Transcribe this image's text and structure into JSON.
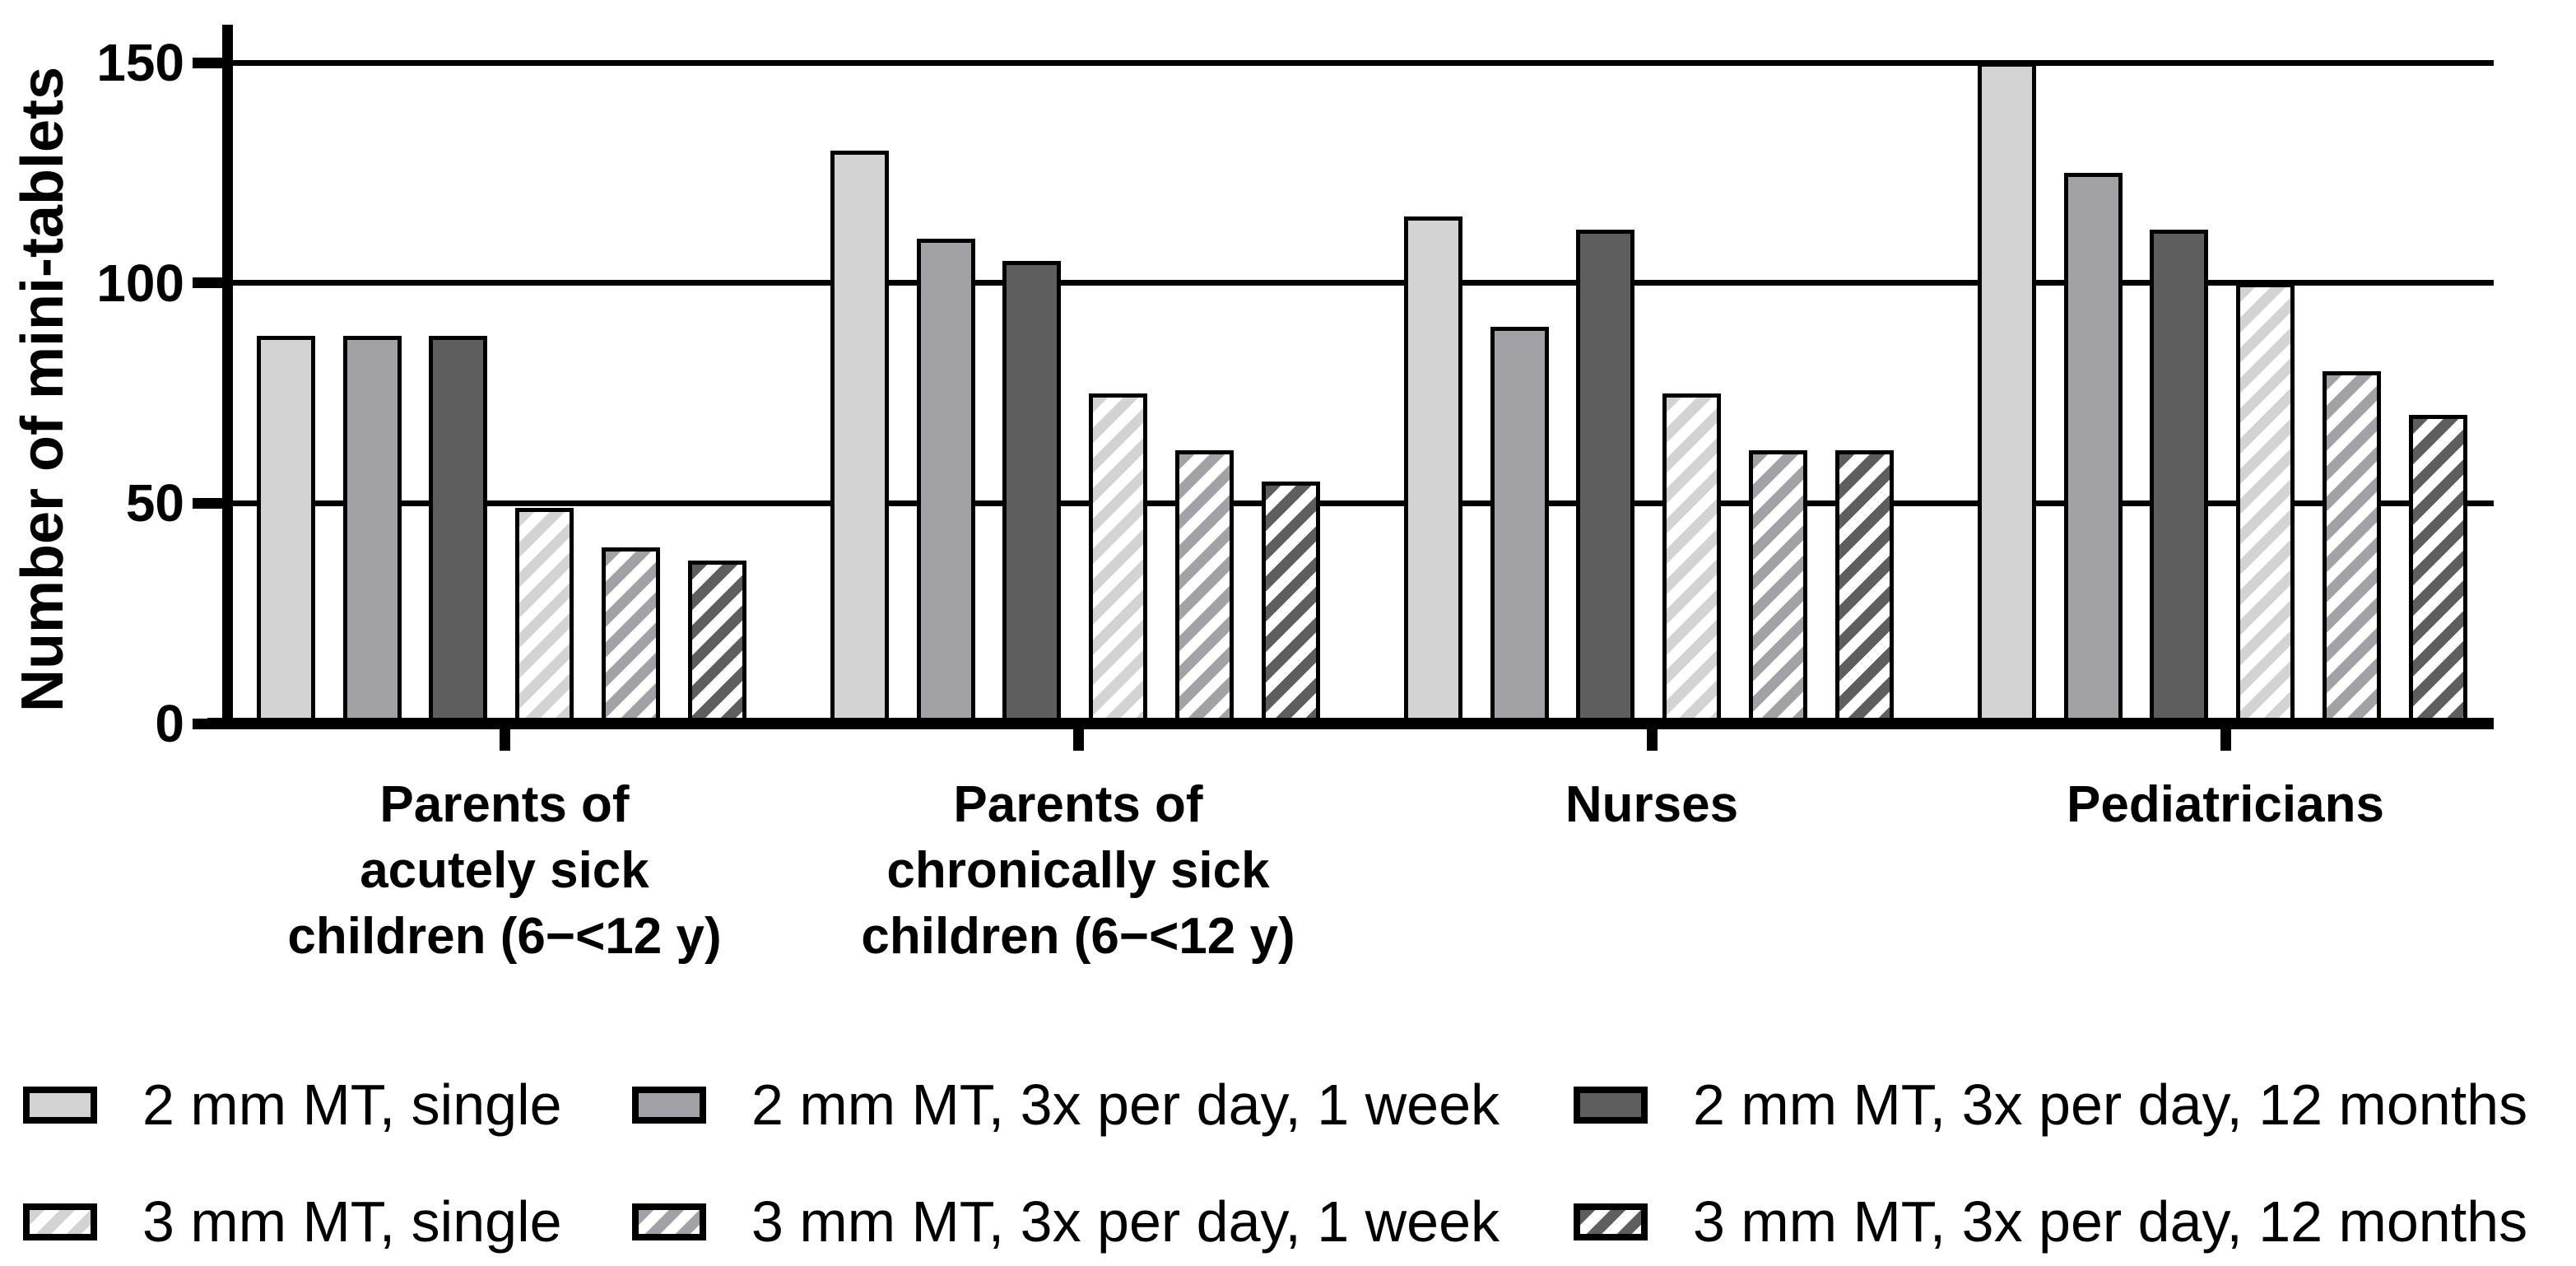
{
  "chart_data": {
    "type": "bar",
    "title": "",
    "xlabel": "",
    "ylabel": "Number of mini-tablets",
    "ylim": [
      0,
      150
    ],
    "yticks": [
      0,
      50,
      100,
      150
    ],
    "grid": "horizontal gridlines at 50, 100 and 150",
    "legend_position": "bottom",
    "categories": [
      "Parents of acutely sick children (6−<12 y)",
      "Parents of chronically sick children (6−<12 y)",
      "Nurses",
      "Pediatricians"
    ],
    "category_label_lines": [
      [
        "Parents of",
        "acutely sick",
        "children (6−<12 y)"
      ],
      [
        "Parents of",
        "chronically sick",
        "children (6−<12 y)"
      ],
      [
        "Nurses"
      ],
      [
        "Pediatricians"
      ]
    ],
    "series": [
      {
        "name": "2 mm MT, single",
        "pattern": "solid",
        "color": "#d3d3d3",
        "values": [
          88,
          130,
          115,
          150
        ]
      },
      {
        "name": "2 mm MT, 3x per day, 1 week",
        "pattern": "solid",
        "color": "#a2a2a6",
        "values": [
          88,
          110,
          90,
          125
        ]
      },
      {
        "name": "2 mm MT, 3x per day, 12 months",
        "pattern": "solid",
        "color": "#5e5e5e",
        "values": [
          88,
          105,
          112,
          112
        ]
      },
      {
        "name": "3 mm MT, single",
        "pattern": "hatched",
        "color": "#d3d3d3",
        "values": [
          49,
          75,
          75,
          100
        ]
      },
      {
        "name": "3 mm MT, 3x per day, 1 week",
        "pattern": "hatched",
        "color": "#a2a2a6",
        "values": [
          40,
          62,
          62,
          80
        ]
      },
      {
        "name": "3 mm MT, 3x per day, 12 months",
        "pattern": "hatched",
        "color": "#5e5e5e",
        "values": [
          37,
          55,
          62,
          70
        ]
      }
    ],
    "colors": {
      "light_gray": "#d3d3d3",
      "medium_gray": "#a2a2a6",
      "dark_gray": "#5e5e5e",
      "axis_black": "#000000",
      "background": "#ffffff"
    }
  }
}
